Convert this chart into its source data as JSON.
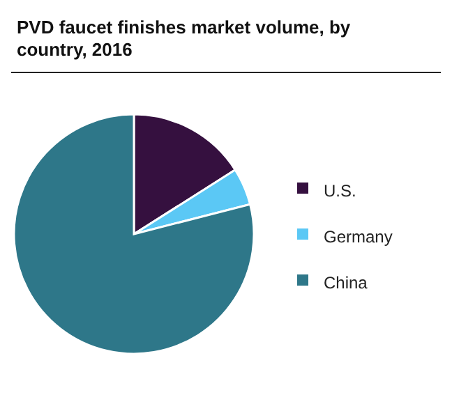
{
  "chart_data": {
    "type": "pie",
    "title": "PVD faucet finishes market volume, by country, 2016",
    "categories": [
      "U.S.",
      "Germany",
      "China"
    ],
    "values": [
      16,
      5,
      79
    ],
    "colors": [
      "#35103f",
      "#5bc8f5",
      "#2e7789"
    ],
    "legend": "right"
  }
}
